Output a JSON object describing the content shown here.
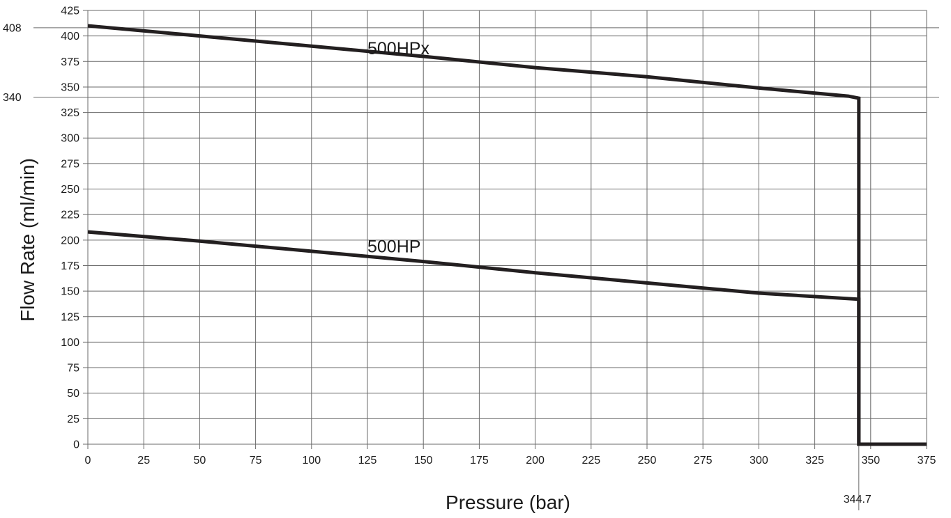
{
  "chart_data": {
    "type": "line",
    "xlabel": "Pressure (bar)",
    "ylabel": "Flow Rate (ml/min)",
    "xlim": [
      0,
      375
    ],
    "ylim": [
      0,
      425
    ],
    "x_ticks": [
      0,
      25,
      50,
      75,
      100,
      125,
      150,
      175,
      200,
      225,
      250,
      275,
      300,
      325,
      350,
      375
    ],
    "y_ticks": [
      0,
      25,
      50,
      75,
      100,
      125,
      150,
      175,
      200,
      225,
      250,
      275,
      300,
      325,
      350,
      375,
      400,
      425
    ],
    "grid": true,
    "series": [
      {
        "name": "500HPx",
        "points": [
          [
            0,
            410
          ],
          [
            50,
            400
          ],
          [
            100,
            390
          ],
          [
            150,
            380
          ],
          [
            200,
            369
          ],
          [
            250,
            360
          ],
          [
            300,
            349
          ],
          [
            340,
            341
          ],
          [
            344.7,
            339
          ],
          [
            344.7,
            0
          ],
          [
            375,
            0
          ]
        ]
      },
      {
        "name": "500HP",
        "points": [
          [
            0,
            208
          ],
          [
            50,
            199
          ],
          [
            100,
            189
          ],
          [
            150,
            179
          ],
          [
            200,
            168
          ],
          [
            250,
            158
          ],
          [
            300,
            148
          ],
          [
            344.7,
            142
          ],
          [
            344.7,
            0
          ],
          [
            375,
            0
          ]
        ]
      }
    ],
    "annotations": {
      "y_marks": [
        {
          "label": "408",
          "value": 408
        },
        {
          "label": "340",
          "value": 340
        }
      ],
      "x_marks": [
        {
          "label": "344.7",
          "value": 344.7
        }
      ]
    }
  }
}
